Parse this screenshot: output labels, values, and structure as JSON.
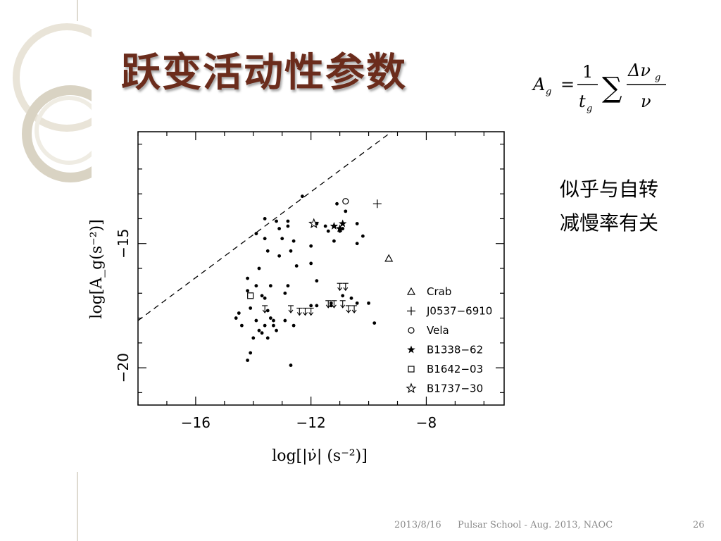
{
  "slide": {
    "title": "跃变活动性参数",
    "formula": {
      "lhs": "A",
      "lhs_sub": "g",
      "equals": "=",
      "numerator_1": "1",
      "denominator_1": "t",
      "denominator_1_sub": "g",
      "sum": "∑",
      "numerator_2": "Δν",
      "numerator_2_sub": "g",
      "denominator_2": "ν"
    },
    "notes": [
      "似乎与自转",
      "减慢率有关"
    ]
  },
  "footer": {
    "date": "2013/8/16",
    "event": "Pulsar School - Aug. 2013, NAOC",
    "page": "26"
  },
  "chart_data": {
    "type": "scatter",
    "xlabel": "log[|ν̇| (s⁻²)]",
    "ylabel": "log[A_g(s⁻²)]",
    "xlim": [
      -18,
      -5.3
    ],
    "ylim": [
      -21.5,
      -10.5
    ],
    "x_ticks": [
      -16,
      -12,
      -8
    ],
    "y_ticks": [
      -15,
      -20
    ],
    "dashed_line": [
      [
        -18,
        -18.1
      ],
      [
        -9.2,
        -10.5
      ]
    ],
    "legend_position": "lower-right",
    "legend": [
      {
        "symbol": "triangle",
        "label": "Crab"
      },
      {
        "symbol": "plus",
        "label": "J0537−6910"
      },
      {
        "symbol": "circle",
        "label": "Vela"
      },
      {
        "symbol": "filled-star",
        "label": "B1338−62"
      },
      {
        "symbol": "square",
        "label": "B1642−03"
      },
      {
        "symbol": "star",
        "label": "B1737−30"
      }
    ],
    "series": [
      {
        "marker": "dot",
        "points": [
          [
            -12.3,
            -13.1
          ],
          [
            -11.1,
            -13.4
          ],
          [
            -10.8,
            -13.7
          ],
          [
            -13.6,
            -14.0
          ],
          [
            -13.2,
            -14.1
          ],
          [
            -12.8,
            -14.1
          ],
          [
            -11.8,
            -14.2
          ],
          [
            -13.1,
            -14.4
          ],
          [
            -12.8,
            -14.3
          ],
          [
            -11.5,
            -14.3
          ],
          [
            -11.0,
            -14.5
          ],
          [
            -10.4,
            -14.2
          ],
          [
            -13.9,
            -14.6
          ],
          [
            -10.9,
            -14.4
          ],
          [
            -11.4,
            -14.5
          ],
          [
            -10.2,
            -14.7
          ],
          [
            -13.6,
            -14.8
          ],
          [
            -13.0,
            -14.8
          ],
          [
            -12.6,
            -14.9
          ],
          [
            -11.2,
            -14.9
          ],
          [
            -12.0,
            -15.1
          ],
          [
            -10.4,
            -15.0
          ],
          [
            -13.5,
            -15.3
          ],
          [
            -12.7,
            -15.3
          ],
          [
            -13.1,
            -15.5
          ],
          [
            -12.0,
            -15.8
          ],
          [
            -12.5,
            -15.9
          ],
          [
            -13.8,
            -16.0
          ],
          [
            -14.2,
            -16.4
          ],
          [
            -11.8,
            -16.5
          ],
          [
            -13.9,
            -16.7
          ],
          [
            -12.8,
            -16.7
          ],
          [
            -13.4,
            -16.7
          ],
          [
            -14.2,
            -16.9
          ],
          [
            -12.9,
            -17.0
          ],
          [
            -13.7,
            -17.1
          ],
          [
            -13.6,
            -17.2
          ],
          [
            -10.9,
            -17.1
          ],
          [
            -10.6,
            -17.2
          ],
          [
            -10.4,
            -17.4
          ],
          [
            -10.0,
            -17.4
          ],
          [
            -12.0,
            -17.5
          ],
          [
            -11.8,
            -17.5
          ],
          [
            -11.3,
            -17.4
          ],
          [
            -11.3,
            -17.5
          ],
          [
            -14.5,
            -17.8
          ],
          [
            -14.1,
            -17.6
          ],
          [
            -13.5,
            -17.7
          ],
          [
            -14.6,
            -18.0
          ],
          [
            -13.9,
            -18.1
          ],
          [
            -13.4,
            -18.0
          ],
          [
            -13.3,
            -18.1
          ],
          [
            -14.4,
            -18.3
          ],
          [
            -13.6,
            -18.3
          ],
          [
            -13.3,
            -18.3
          ],
          [
            -12.9,
            -18.1
          ],
          [
            -12.6,
            -18.3
          ],
          [
            -13.8,
            -18.5
          ],
          [
            -13.7,
            -18.6
          ],
          [
            -13.2,
            -18.5
          ],
          [
            -14.0,
            -18.8
          ],
          [
            -13.5,
            -18.8
          ],
          [
            -14.1,
            -19.4
          ],
          [
            -14.2,
            -19.7
          ],
          [
            -9.8,
            -18.2
          ],
          [
            -12.7,
            -19.9
          ]
        ]
      },
      {
        "marker": "upper-limit",
        "points": [
          [
            -13.6,
            -17.5
          ],
          [
            -12.7,
            -17.5
          ],
          [
            -12.4,
            -17.6
          ],
          [
            -12.2,
            -17.6
          ],
          [
            -12.0,
            -17.6
          ],
          [
            -11.2,
            -17.3
          ],
          [
            -10.9,
            -17.3
          ],
          [
            -10.5,
            -17.5
          ],
          [
            -10.7,
            -17.5
          ],
          [
            -11.4,
            -17.3
          ],
          [
            -11.0,
            -16.6
          ],
          [
            -10.8,
            -16.6
          ]
        ]
      },
      {
        "name": "Crab",
        "marker": "triangle",
        "points": [
          [
            -9.3,
            -15.6
          ]
        ]
      },
      {
        "name": "J0537−6910",
        "marker": "plus",
        "points": [
          [
            -9.7,
            -13.4
          ]
        ]
      },
      {
        "name": "Vela",
        "marker": "circle",
        "points": [
          [
            -10.8,
            -13.3
          ]
        ]
      },
      {
        "name": "B1338−62",
        "marker": "filled-star",
        "points": [
          [
            -11.0,
            -14.4
          ],
          [
            -11.2,
            -14.3
          ],
          [
            -10.9,
            -14.2
          ]
        ]
      },
      {
        "name": "B1642−03",
        "marker": "square",
        "points": [
          [
            -14.1,
            -17.1
          ]
        ]
      },
      {
        "name": "B1737−30",
        "marker": "star",
        "points": [
          [
            -11.9,
            -14.2
          ]
        ]
      }
    ]
  }
}
